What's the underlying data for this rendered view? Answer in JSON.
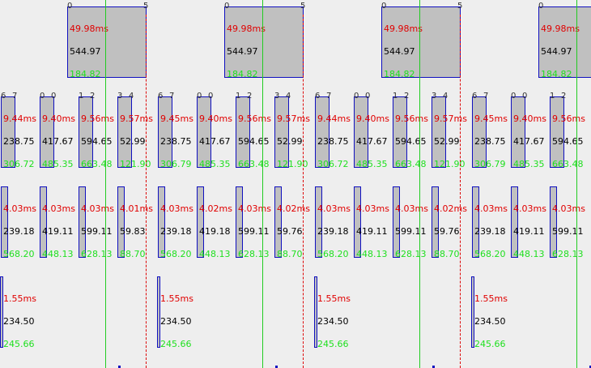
{
  "top_row": {
    "start_index": "0",
    "end_index": "5",
    "duration": "49.98ms",
    "value": "544.97",
    "green_value": "184.82"
  },
  "row2": [
    {
      "idx_a": "6",
      "idx_b": "7",
      "duration": "9.44ms",
      "value": "238.75",
      "green_value": "306.72"
    },
    {
      "idx_a": "0",
      "idx_b": "0",
      "duration": "9.40ms",
      "value": "417.67",
      "green_value": "485.35"
    },
    {
      "idx_a": "1",
      "idx_b": "2",
      "duration": "9.56ms",
      "value": "594.65",
      "green_value": "663.48"
    },
    {
      "idx_a": "3",
      "idx_b": "4",
      "duration": "9.57ms",
      "value": "52.99",
      "green_value": "121.90"
    },
    {
      "idx_a": "6",
      "idx_b": "7",
      "duration": "9.45ms",
      "value": "238.75",
      "green_value": "306.79"
    },
    {
      "idx_a": "0",
      "idx_b": "0",
      "duration": "9.40ms",
      "value": "417.67",
      "green_value": "485.35"
    },
    {
      "idx_a": "1",
      "idx_b": "2",
      "duration": "9.56ms",
      "value": "594.65",
      "green_value": "663.48"
    },
    {
      "idx_a": "3",
      "idx_b": "4",
      "duration": "9.57ms",
      "value": "52.99",
      "green_value": "121.90"
    },
    {
      "idx_a": "6",
      "idx_b": "7",
      "duration": "9.44ms",
      "value": "238.75",
      "green_value": "306.72"
    },
    {
      "idx_a": "0",
      "idx_b": "0",
      "duration": "9.40ms",
      "value": "417.67",
      "green_value": "485.35"
    },
    {
      "idx_a": "1",
      "idx_b": "2",
      "duration": "9.56ms",
      "value": "594.65",
      "green_value": "663.48"
    },
    {
      "idx_a": "3",
      "idx_b": "4",
      "duration": "9.57ms",
      "value": "52.99",
      "green_value": "121.90"
    },
    {
      "idx_a": "6",
      "idx_b": "7",
      "duration": "9.45ms",
      "value": "238.75",
      "green_value": "306.79"
    },
    {
      "idx_a": "0",
      "idx_b": "0",
      "duration": "9.40ms",
      "value": "417.67",
      "green_value": "485.35"
    },
    {
      "idx_a": "1",
      "idx_b": "2",
      "duration": "9.56ms",
      "value": "594.65",
      "green_value": "663.48"
    }
  ],
  "row3": [
    {
      "duration": "4.03ms",
      "value": "239.18",
      "green_value": "568.20"
    },
    {
      "duration": "4.03ms",
      "value": "419.11",
      "green_value": "448.13"
    },
    {
      "duration": "4.03ms",
      "value": "599.11",
      "green_value": "628.13"
    },
    {
      "duration": "4.01ms",
      "value": "59.83",
      "green_value": "88.70"
    },
    {
      "duration": "4.03ms",
      "value": "239.18",
      "green_value": "568.20"
    },
    {
      "duration": "4.02ms",
      "value": "419.18",
      "green_value": "448.13"
    },
    {
      "duration": "4.03ms",
      "value": "599.11",
      "green_value": "628.13"
    },
    {
      "duration": "4.02ms",
      "value": "59.76",
      "green_value": "88.70"
    },
    {
      "duration": "4.03ms",
      "value": "239.18",
      "green_value": "568.20"
    },
    {
      "duration": "4.03ms",
      "value": "419.11",
      "green_value": "448.13"
    },
    {
      "duration": "4.03ms",
      "value": "599.11",
      "green_value": "628.13"
    },
    {
      "duration": "4.02ms",
      "value": "59.76",
      "green_value": "88.70"
    },
    {
      "duration": "4.03ms",
      "value": "239.18",
      "green_value": "568.20"
    },
    {
      "duration": "4.03ms",
      "value": "419.11",
      "green_value": "448.13"
    },
    {
      "duration": "4.03ms",
      "value": "599.11",
      "green_value": "628.13"
    }
  ],
  "row4": {
    "duration": "1.55ms",
    "value": "234.50",
    "green_value": "245.66"
  },
  "colors": {
    "block_fill": "#c0c0c0",
    "block_border": "#1010c0",
    "duration_text": "#e00000",
    "value_text": "#000000",
    "green_text": "#20e020",
    "green_line": "#22cc22",
    "red_dashed_line": "#dd0000",
    "background": "#eeeeee"
  }
}
